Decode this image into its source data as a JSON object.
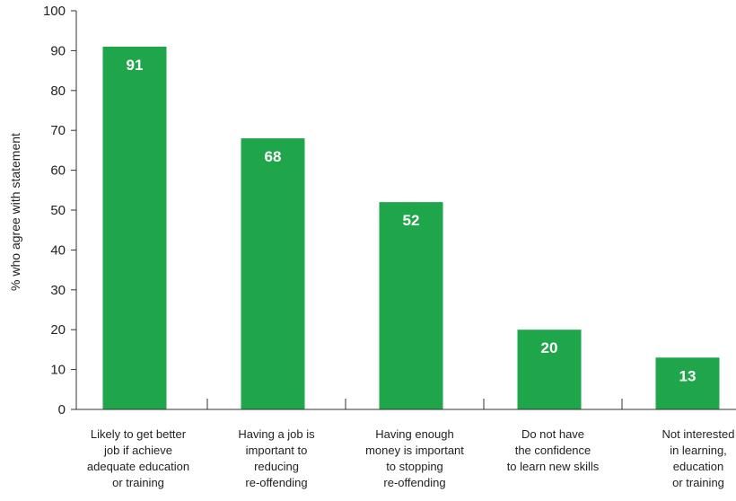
{
  "chart_data": {
    "type": "bar",
    "ylabel": "% who agree with statement",
    "xlabel": "",
    "ylim": [
      0,
      100
    ],
    "yticks": [
      0,
      10,
      20,
      30,
      40,
      50,
      60,
      70,
      80,
      90,
      100
    ],
    "categories": [
      [
        "Likely to get better",
        "job if achieve",
        "adequate education",
        "or training"
      ],
      [
        "Having a job is",
        "important to",
        "reducing",
        "re-offending"
      ],
      [
        "Having enough",
        "money is important",
        "to stopping",
        "re-offending"
      ],
      [
        "Do not have",
        "the confidence",
        "to learn new skills"
      ],
      [
        "Not interested",
        "in learning,",
        "education",
        "or training"
      ]
    ],
    "values": [
      91,
      68,
      52,
      20,
      13
    ],
    "data_labels": [
      "91",
      "68",
      "52",
      "20",
      "13"
    ],
    "bar_color": "#1fa64a",
    "grid": false
  }
}
